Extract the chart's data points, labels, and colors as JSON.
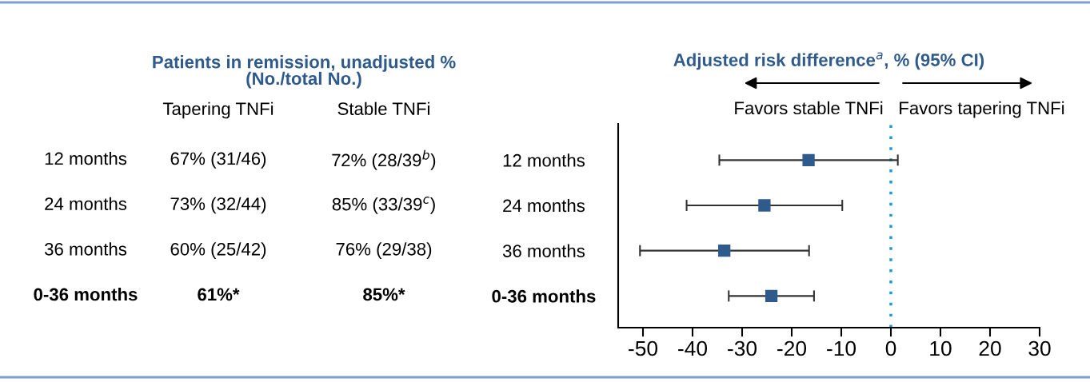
{
  "chart_data": [
    {
      "type": "other",
      "title": "Patients in remission, unadjusted %\n(No./total No.)",
      "annotations": [
        "Tapering TNFi",
        "Stable TNFi",
        "12 months",
        "67% (31/46)",
        "72% (28/39$^{b}$)",
        "24 months",
        "73% (32/44)",
        "85% (33/39$^{c}$)",
        "36 months",
        "60% (25/42)",
        "76% (29/38)",
        "0-36 months",
        "61%*",
        "85%*"
      ]
    },
    {
      "type": "scatter",
      "orientation": "horizontal",
      "title": "Adjusted risk difference$^{a}$, % (95% CI)",
      "categories": [
        "12 months",
        "24 months",
        "36 months",
        "0-36 months"
      ],
      "values": [
        -16.6,
        -25.5,
        -33.6,
        -24.1
      ],
      "errors": [
        [
          -34.6,
          1.4
        ],
        [
          -41.2,
          -9.8
        ],
        [
          -50.6,
          -16.5
        ],
        [
          -32.7,
          -15.5
        ]
      ],
      "color": "#2e5a8c",
      "marker": "square",
      "xlim": [
        -55,
        30
      ],
      "xticks": [
        -50,
        -40,
        -30,
        -20,
        -10,
        0,
        10,
        20,
        30
      ],
      "ref_lines": [
        {
          "axis": "x",
          "value": 0,
          "color": "#1a9bd7",
          "line_style": "dotted"
        }
      ],
      "annotations": [
        "Favors stable TNFi",
        "Favors tapering TNFi"
      ],
      "grid": false,
      "legend": false
    }
  ]
}
